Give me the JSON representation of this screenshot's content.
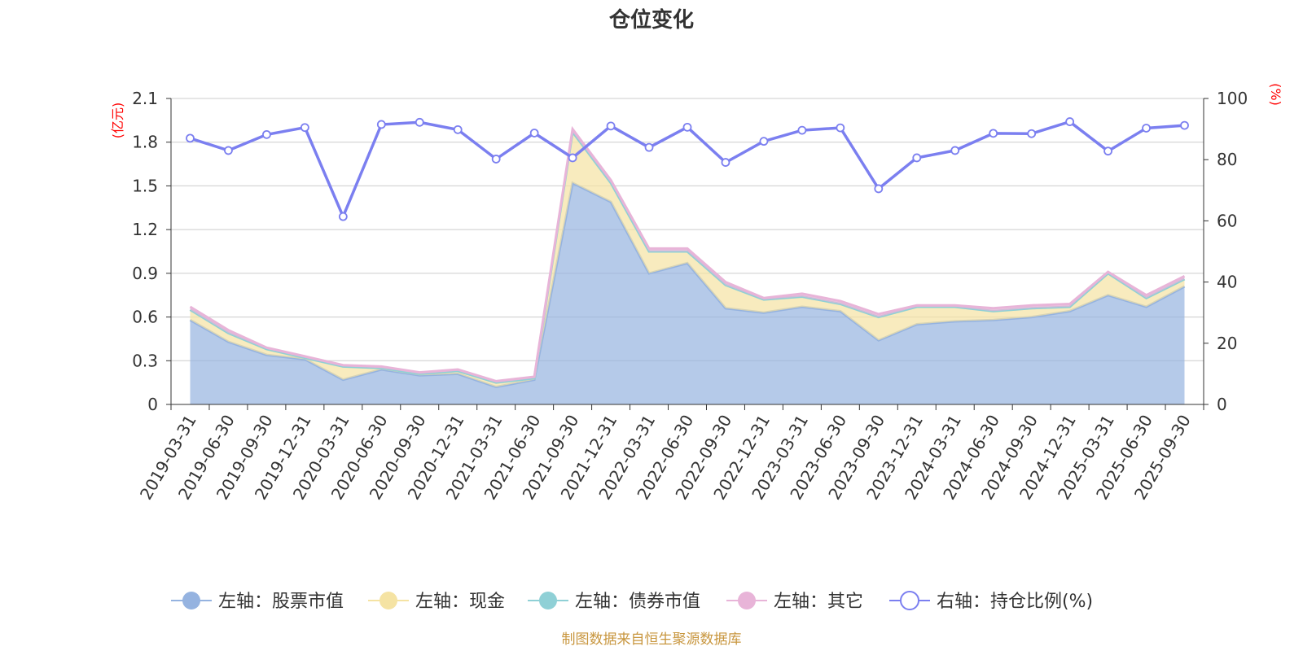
{
  "chart_data": {
    "type": "area",
    "title": "仓位变化",
    "left_unit": "(亿元)",
    "right_unit": "(%)",
    "ylim_left": [
      0,
      2.1
    ],
    "yticks_left": [
      0,
      0.3,
      0.6,
      0.9,
      1.2,
      1.5,
      1.8,
      2.1
    ],
    "ylim_right": [
      0,
      100
    ],
    "yticks_right": [
      0,
      20,
      40,
      60,
      80,
      100
    ],
    "grid": true,
    "legend_position": "bottom",
    "categories": [
      "2019-03-31",
      "2019-06-30",
      "2019-09-30",
      "2019-12-31",
      "2020-03-31",
      "2020-06-30",
      "2020-09-30",
      "2020-12-31",
      "2021-03-31",
      "2021-06-30",
      "2021-09-30",
      "2021-12-31",
      "2022-03-31",
      "2022-06-30",
      "2022-09-30",
      "2022-12-31",
      "2023-03-31",
      "2023-06-30",
      "2023-09-30",
      "2023-12-31",
      "2024-03-31",
      "2024-06-30",
      "2024-09-30",
      "2024-12-31",
      "2025-03-31",
      "2025-06-30",
      "2025-09-30"
    ],
    "series": [
      {
        "name": "左轴：股票市值",
        "axis": "left",
        "stack": true,
        "color": "#95b3e0",
        "values": [
          0.58,
          0.43,
          0.34,
          0.31,
          0.17,
          0.24,
          0.2,
          0.21,
          0.12,
          0.17,
          1.52,
          1.39,
          0.9,
          0.97,
          0.66,
          0.63,
          0.67,
          0.64,
          0.44,
          0.55,
          0.57,
          0.58,
          0.6,
          0.64,
          0.75,
          0.67,
          0.81
        ]
      },
      {
        "name": "左轴：现金",
        "axis": "left",
        "stack": true,
        "color": "#f5e3a3",
        "values": [
          0.07,
          0.06,
          0.04,
          0.01,
          0.09,
          0.01,
          0.01,
          0.02,
          0.03,
          0.01,
          0.35,
          0.13,
          0.15,
          0.08,
          0.16,
          0.09,
          0.07,
          0.05,
          0.16,
          0.12,
          0.1,
          0.06,
          0.06,
          0.03,
          0.15,
          0.06,
          0.05
        ]
      },
      {
        "name": "左轴：债券市值",
        "axis": "left",
        "stack": true,
        "color": "#8fd0d6",
        "values": [
          0,
          0,
          0,
          0,
          0,
          0,
          0,
          0,
          0,
          0,
          0,
          0,
          0,
          0,
          0,
          0,
          0,
          0,
          0,
          0,
          0,
          0,
          0,
          0,
          0,
          0,
          0
        ]
      },
      {
        "name": "左轴：其它",
        "axis": "left",
        "stack": true,
        "color": "#e8b4d8",
        "values": [
          0.02,
          0.02,
          0.01,
          0.01,
          0.01,
          0.01,
          0.01,
          0.01,
          0.01,
          0.01,
          0.02,
          0.02,
          0.02,
          0.02,
          0.02,
          0.01,
          0.02,
          0.02,
          0.02,
          0.01,
          0.01,
          0.02,
          0.02,
          0.02,
          0.01,
          0.02,
          0.02
        ]
      },
      {
        "name": "右轴：持仓比例(%)",
        "axis": "right",
        "stack": false,
        "color": "#7b7ff0",
        "values": [
          87.0,
          83.0,
          88.2,
          90.5,
          61.4,
          91.5,
          92.2,
          89.8,
          80.2,
          88.7,
          80.6,
          91.0,
          84.0,
          90.6,
          79.1,
          86.0,
          89.6,
          90.4,
          70.5,
          80.6,
          83.0,
          88.6,
          88.5,
          92.4,
          82.8,
          90.3,
          91.2
        ]
      }
    ]
  },
  "source_note": "制图数据来自恒生聚源数据库"
}
